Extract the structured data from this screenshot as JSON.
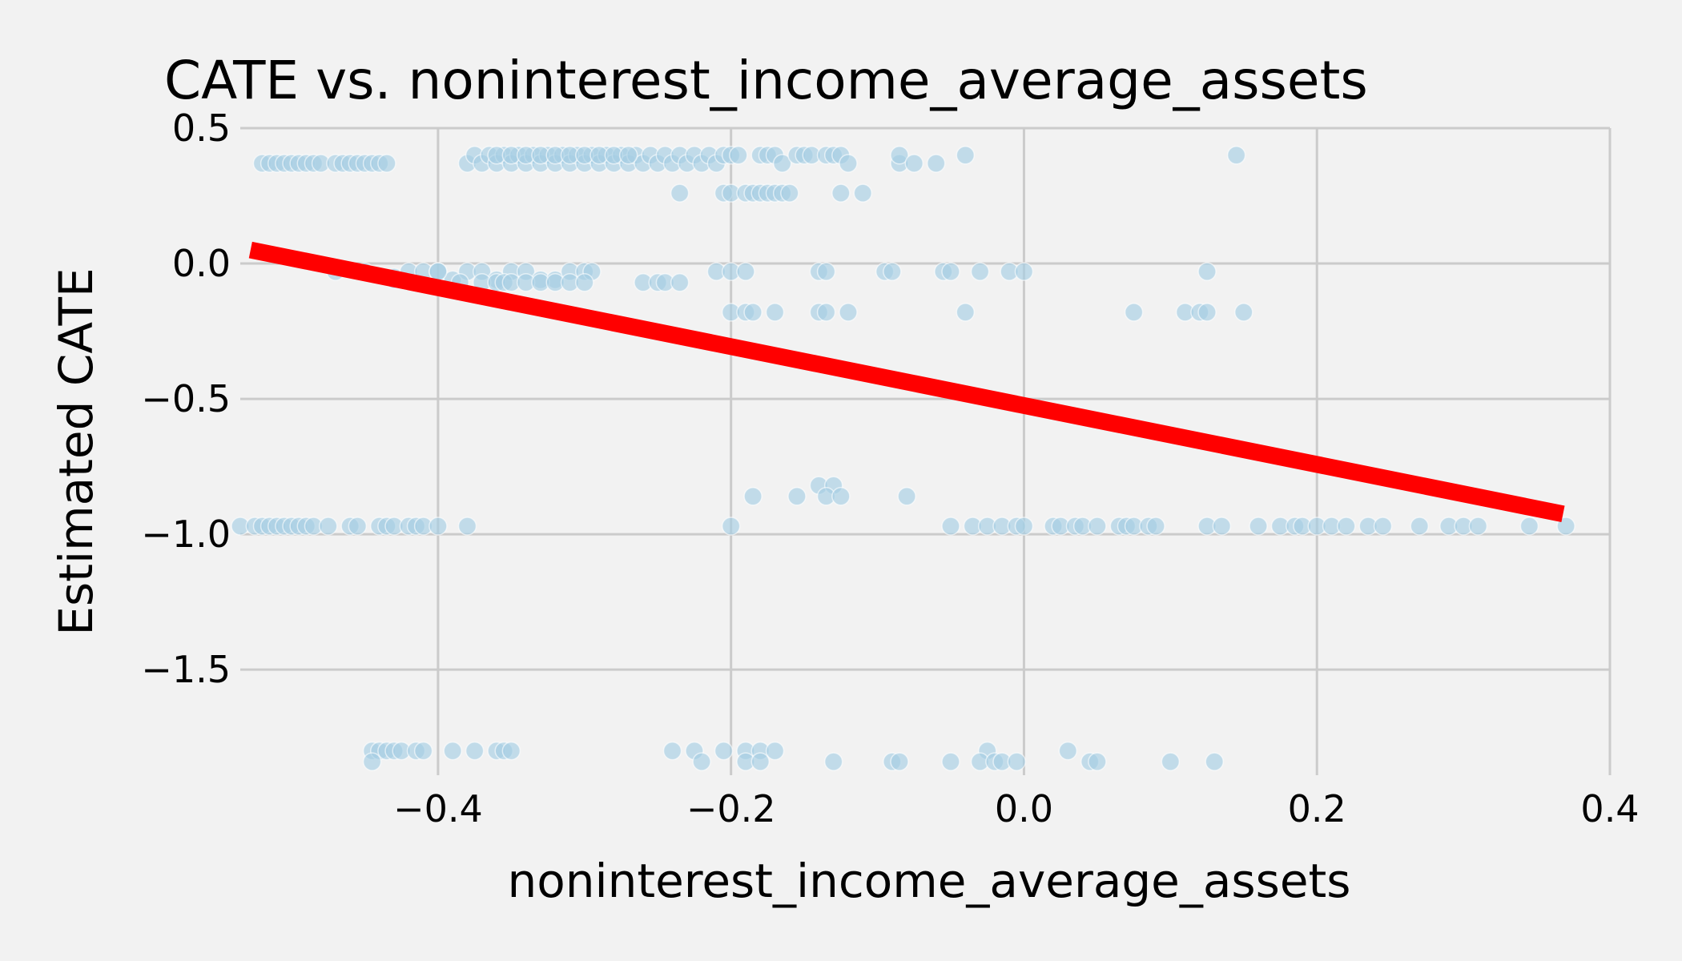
{
  "chart_data": {
    "type": "scatter",
    "title": "CATE vs. noninterest_income_average_assets",
    "xlabel": "noninterest_income_average_assets",
    "ylabel": "Estimated CATE",
    "xlim": [
      -0.535,
      0.4
    ],
    "ylim": [
      -1.89,
      0.5
    ],
    "xticks": [
      -0.4,
      -0.2,
      0.0,
      0.2,
      0.4
    ],
    "xtick_labels": [
      "−0.4",
      "−0.2",
      "0.0",
      "0.2",
      "0.4"
    ],
    "yticks": [
      0.5,
      0.0,
      -0.5,
      -1.0,
      -1.5
    ],
    "ytick_labels": [
      "0.5",
      "0.0",
      "−0.5",
      "−1.0",
      "−1.5"
    ],
    "grid": true,
    "colors": {
      "points": "#a6cee3",
      "trend": "#ff0000",
      "background": "#f2f2f2",
      "grid": "#cbcbcb"
    },
    "trend_line": {
      "x": [
        -0.528,
        0.368
      ],
      "y": [
        0.05,
        -0.925
      ]
    },
    "series": [
      {
        "x": [
          -0.52,
          -0.515,
          -0.51,
          -0.505,
          -0.5,
          -0.495,
          -0.49,
          -0.485,
          -0.48,
          -0.47,
          -0.465,
          -0.46,
          -0.455,
          -0.45,
          -0.445,
          -0.44,
          -0.435,
          -0.38,
          -0.375,
          -0.37,
          -0.365,
          -0.36,
          -0.355,
          -0.35,
          -0.345,
          -0.34,
          -0.335,
          -0.33,
          -0.325,
          -0.32,
          -0.315,
          -0.31,
          -0.305,
          -0.3,
          -0.295,
          -0.29,
          -0.285,
          -0.28,
          -0.275,
          -0.27,
          -0.265,
          -0.26,
          -0.255,
          -0.25,
          -0.245,
          -0.24,
          -0.235,
          -0.23,
          -0.225,
          -0.22,
          -0.215,
          -0.21,
          -0.205,
          -0.2,
          -0.195,
          -0.18,
          -0.175,
          -0.17,
          -0.165,
          -0.155,
          -0.15,
          -0.145,
          -0.135,
          -0.13,
          -0.125,
          -0.12,
          -0.085,
          -0.085,
          -0.075,
          -0.06,
          -0.04,
          0.145,
          -0.36,
          -0.35,
          -0.34,
          -0.33,
          -0.32,
          -0.31,
          -0.3,
          -0.29,
          -0.28,
          -0.27,
          -0.235,
          -0.205,
          -0.2,
          -0.19,
          -0.185,
          -0.18,
          -0.175,
          -0.17,
          -0.165,
          -0.16,
          -0.125,
          -0.11,
          -0.47,
          -0.45,
          -0.43,
          -0.42,
          -0.41,
          -0.4,
          -0.39,
          -0.38,
          -0.37,
          -0.36,
          -0.35,
          -0.34,
          -0.33,
          -0.32,
          -0.31,
          -0.3,
          -0.295,
          -0.26,
          -0.25,
          -0.245,
          -0.235,
          -0.21,
          -0.2,
          -0.19,
          -0.14,
          -0.135,
          -0.095,
          -0.09,
          -0.055,
          -0.05,
          -0.03,
          -0.01,
          0.0,
          0.125,
          -0.43,
          -0.4,
          -0.385,
          -0.37,
          -0.36,
          -0.355,
          -0.35,
          -0.34,
          -0.33,
          -0.32,
          -0.31,
          -0.3,
          -0.2,
          -0.19,
          -0.185,
          -0.17,
          -0.14,
          -0.135,
          -0.12,
          -0.04,
          0.075,
          0.11,
          0.12,
          0.125,
          0.15,
          -0.14,
          -0.13,
          -0.185,
          -0.155,
          -0.135,
          -0.125,
          -0.08,
          -0.535,
          -0.525,
          -0.52,
          -0.515,
          -0.51,
          -0.505,
          -0.5,
          -0.495,
          -0.49,
          -0.485,
          -0.475,
          -0.46,
          -0.455,
          -0.44,
          -0.435,
          -0.43,
          -0.42,
          -0.415,
          -0.41,
          -0.4,
          -0.38,
          -0.2,
          -0.05,
          -0.035,
          -0.025,
          -0.015,
          -0.005,
          0.0,
          0.02,
          0.025,
          0.035,
          0.04,
          0.05,
          0.065,
          0.07,
          0.075,
          0.085,
          0.09,
          0.125,
          0.135,
          0.16,
          0.175,
          0.185,
          0.19,
          0.2,
          0.21,
          0.22,
          0.235,
          0.245,
          0.27,
          0.29,
          0.3,
          0.31,
          0.345,
          0.37,
          -0.445,
          -0.44,
          -0.435,
          -0.43,
          -0.425,
          -0.415,
          -0.41,
          -0.39,
          -0.375,
          -0.36,
          -0.355,
          -0.35,
          -0.24,
          -0.225,
          -0.205,
          -0.19,
          -0.18,
          -0.17,
          -0.025,
          0.03,
          -0.445,
          -0.22,
          -0.19,
          -0.18,
          -0.13,
          -0.09,
          -0.085,
          -0.05,
          -0.03,
          -0.02,
          -0.015,
          -0.005,
          0.045,
          0.05,
          0.1,
          0.13
        ],
        "y": [
          0.37,
          0.37,
          0.37,
          0.37,
          0.37,
          0.37,
          0.37,
          0.37,
          0.37,
          0.37,
          0.37,
          0.37,
          0.37,
          0.37,
          0.37,
          0.37,
          0.37,
          0.37,
          0.4,
          0.37,
          0.4,
          0.37,
          0.4,
          0.37,
          0.4,
          0.37,
          0.4,
          0.37,
          0.4,
          0.37,
          0.4,
          0.37,
          0.4,
          0.37,
          0.4,
          0.37,
          0.4,
          0.37,
          0.4,
          0.37,
          0.4,
          0.37,
          0.4,
          0.37,
          0.4,
          0.37,
          0.4,
          0.37,
          0.4,
          0.37,
          0.4,
          0.37,
          0.4,
          0.4,
          0.4,
          0.4,
          0.4,
          0.4,
          0.37,
          0.4,
          0.4,
          0.4,
          0.4,
          0.4,
          0.4,
          0.37,
          0.37,
          0.4,
          0.37,
          0.37,
          0.4,
          0.4,
          0.4,
          0.4,
          0.4,
          0.4,
          0.4,
          0.4,
          0.4,
          0.4,
          0.4,
          0.4,
          0.26,
          0.26,
          0.26,
          0.26,
          0.26,
          0.26,
          0.26,
          0.26,
          0.26,
          0.26,
          0.26,
          0.26,
          -0.03,
          -0.03,
          -0.05,
          -0.03,
          -0.03,
          -0.03,
          -0.06,
          -0.03,
          -0.03,
          -0.06,
          -0.03,
          -0.03,
          -0.06,
          -0.06,
          -0.03,
          -0.03,
          -0.03,
          -0.07,
          -0.07,
          -0.07,
          -0.07,
          -0.03,
          -0.03,
          -0.03,
          -0.03,
          -0.03,
          -0.03,
          -0.03,
          -0.03,
          -0.03,
          -0.03,
          -0.03,
          -0.03,
          -0.03,
          -0.06,
          -0.03,
          -0.07,
          -0.07,
          -0.07,
          -0.07,
          -0.07,
          -0.07,
          -0.07,
          -0.07,
          -0.07,
          -0.07,
          -0.18,
          -0.18,
          -0.18,
          -0.18,
          -0.18,
          -0.18,
          -0.18,
          -0.18,
          -0.18,
          -0.18,
          -0.18,
          -0.18,
          -0.18,
          -0.82,
          -0.82,
          -0.86,
          -0.86,
          -0.86,
          -0.86,
          -0.86,
          -0.97,
          -0.97,
          -0.97,
          -0.97,
          -0.97,
          -0.97,
          -0.97,
          -0.97,
          -0.97,
          -0.97,
          -0.97,
          -0.97,
          -0.97,
          -0.97,
          -0.97,
          -0.97,
          -0.97,
          -0.97,
          -0.97,
          -0.97,
          -0.97,
          -0.97,
          -0.97,
          -0.97,
          -0.97,
          -0.97,
          -0.97,
          -0.97,
          -0.97,
          -0.97,
          -0.97,
          -0.97,
          -0.97,
          -0.97,
          -0.97,
          -0.97,
          -0.97,
          -0.97,
          -0.97,
          -0.97,
          -0.97,
          -0.97,
          -0.97,
          -0.97,
          -0.97,
          -0.97,
          -0.97,
          -0.97,
          -0.97,
          -0.97,
          -0.97,
          -0.97,
          -0.97,
          -0.97,
          -0.97,
          -1.8,
          -1.8,
          -1.8,
          -1.8,
          -1.8,
          -1.8,
          -1.8,
          -1.8,
          -1.8,
          -1.8,
          -1.8,
          -1.8,
          -1.8,
          -1.8,
          -1.8,
          -1.8,
          -1.8,
          -1.8,
          -1.8,
          -1.8,
          -1.84,
          -1.84,
          -1.84,
          -1.84,
          -1.84,
          -1.84,
          -1.84,
          -1.84,
          -1.84,
          -1.84,
          -1.84,
          -1.84,
          -1.84,
          -1.84,
          -1.84,
          -1.84
        ]
      }
    ]
  }
}
